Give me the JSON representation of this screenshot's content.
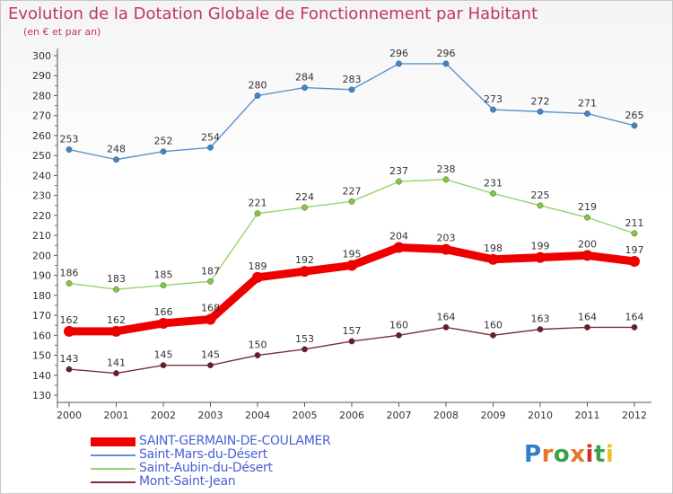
{
  "title": "Evolution de la Dotation Globale de Fonctionnement par Habitant",
  "subtitle": "(en € et par an)",
  "logo": {
    "text": "Proxiti",
    "letters": [
      "P",
      "r",
      "o",
      "x",
      "i",
      "t",
      "i"
    ],
    "colors": [
      "#2e7fc7",
      "#e8752a",
      "#3aa34a",
      "#e8752a",
      "#d4302e",
      "#3aa34a",
      "#e8c22a"
    ]
  },
  "colors": {
    "title": "#c0346e",
    "axis": "#555555",
    "legend_text": "#4a5fd6"
  },
  "chart_data": {
    "type": "line",
    "x": [
      "2000",
      "2001",
      "2002",
      "2003",
      "2004",
      "2005",
      "2006",
      "2007",
      "2008",
      "2009",
      "2010",
      "2011",
      "2012"
    ],
    "ylim": [
      130,
      300
    ],
    "yticks": [
      130,
      140,
      150,
      160,
      170,
      180,
      190,
      200,
      210,
      220,
      230,
      240,
      250,
      260,
      270,
      280,
      290,
      300
    ],
    "grid": false,
    "legend_position": "bottom-left",
    "series": [
      {
        "name": "SAINT-GERMAIN-DE-COULAMER",
        "color": "#ee0000",
        "marker": "#ee0000",
        "emphasis": true,
        "values": [
          162,
          162,
          166,
          168,
          189,
          192,
          195,
          204,
          203,
          198,
          199,
          200,
          197
        ]
      },
      {
        "name": "Saint-Mars-du-Désert",
        "color": "#5a94cd",
        "marker": "#3f86c9",
        "emphasis": false,
        "values": [
          253,
          248,
          252,
          254,
          280,
          284,
          283,
          296,
          296,
          273,
          272,
          271,
          265
        ]
      },
      {
        "name": "Saint-Aubin-du-Désert",
        "color": "#95d46c",
        "marker": "#7ecb3f",
        "emphasis": false,
        "values": [
          186,
          183,
          185,
          187,
          221,
          224,
          227,
          237,
          238,
          231,
          225,
          219,
          211
        ]
      },
      {
        "name": "Mont-Saint-Jean",
        "color": "#7a2f36",
        "marker": "#6b1d25",
        "emphasis": false,
        "values": [
          143,
          141,
          145,
          145,
          150,
          153,
          157,
          160,
          164,
          160,
          163,
          164,
          164
        ]
      }
    ]
  }
}
